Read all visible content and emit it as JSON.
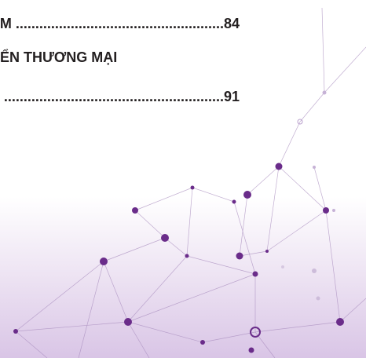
{
  "toc": {
    "lines": [
      "M .....................................................84",
      "ỂN THƯƠNG MẠI",
      "........................................................91"
    ]
  }
}
